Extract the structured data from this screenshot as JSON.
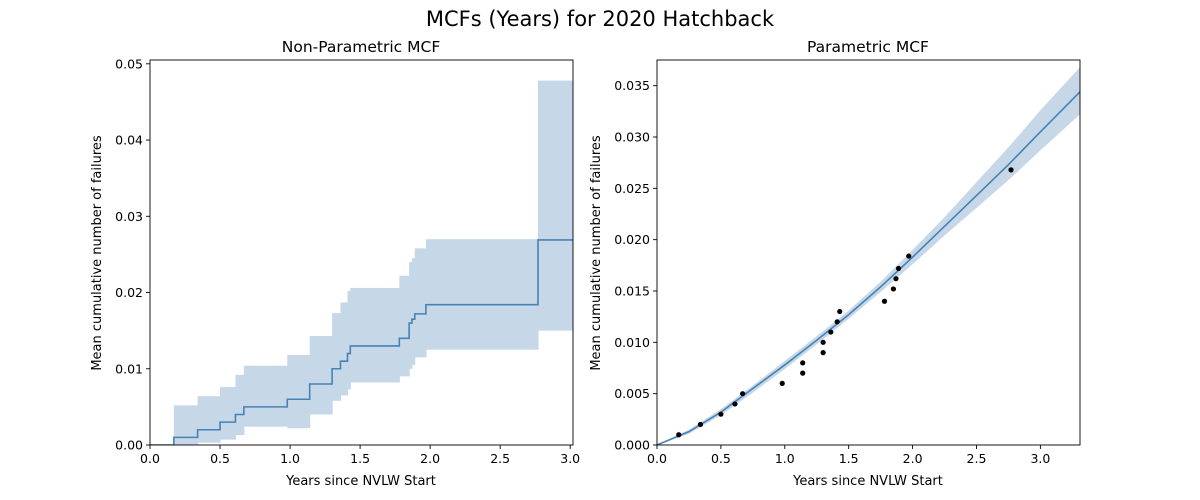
{
  "figure_title": "MCFs (Years) for 2020 Hatchback",
  "colors": {
    "line": "#4682b4",
    "band": "#c6d8e8",
    "point": "#000000"
  },
  "chart_data": [
    {
      "type": "line",
      "step": true,
      "title": "Non-Parametric MCF",
      "xlabel": "Years since NVLW Start",
      "ylabel": "Mean cumulative number of failures",
      "xlim": [
        0,
        3.02
      ],
      "ylim": [
        0,
        0.0505
      ],
      "xticks": [
        "0.0",
        "0.5",
        "1.0",
        "1.5",
        "2.0",
        "2.5",
        "3.0"
      ],
      "yticks": [
        "0.00",
        "0.01",
        "0.02",
        "0.03",
        "0.04",
        "0.05"
      ],
      "grid": false,
      "series": [
        {
          "x": [
            0.0,
            0.17,
            0.34,
            0.5,
            0.61,
            0.67,
            0.98,
            1.14,
            1.3,
            1.36,
            1.41,
            1.43,
            1.78,
            1.85,
            1.87,
            1.89,
            1.97,
            2.77
          ],
          "y": [
            0.0,
            0.001,
            0.002,
            0.003,
            0.004,
            0.005,
            0.006,
            0.008,
            0.01,
            0.011,
            0.012,
            0.013,
            0.014,
            0.016,
            0.0165,
            0.0172,
            0.0184,
            0.0269
          ],
          "lower": [
            0.0,
            0.0,
            0.0003,
            0.0007,
            0.0013,
            0.0024,
            0.0022,
            0.004,
            0.0058,
            0.0065,
            0.0073,
            0.0082,
            0.009,
            0.01,
            0.0105,
            0.0115,
            0.0125,
            0.015
          ],
          "upper": [
            0.0,
            0.0052,
            0.0064,
            0.0076,
            0.0092,
            0.0104,
            0.0118,
            0.0143,
            0.0173,
            0.0187,
            0.0202,
            0.0206,
            0.0222,
            0.024,
            0.0245,
            0.0258,
            0.027,
            0.0478
          ]
        }
      ]
    },
    {
      "type": "line",
      "title": "Parametric MCF",
      "xlabel": "Years since NVLW Start",
      "ylabel": "Mean cumulative number of failures",
      "xlim": [
        0,
        3.31
      ],
      "ylim": [
        0,
        0.0375
      ],
      "xticks": [
        "0.0",
        "0.5",
        "1.0",
        "1.5",
        "2.0",
        "2.5",
        "3.0"
      ],
      "yticks": [
        "0.000",
        "0.005",
        "0.010",
        "0.015",
        "0.020",
        "0.025",
        "0.030",
        "0.035"
      ],
      "grid": false,
      "curve": {
        "x": [
          0.0,
          0.25,
          0.5,
          0.75,
          1.0,
          1.25,
          1.5,
          1.75,
          2.0,
          2.25,
          2.5,
          2.75,
          3.0,
          3.31
        ],
        "y": [
          0.0,
          0.0013,
          0.0032,
          0.0055,
          0.0078,
          0.0102,
          0.0127,
          0.0154,
          0.0183,
          0.0213,
          0.0243,
          0.0273,
          0.0305,
          0.0344
        ],
        "lower": [
          0.0,
          0.0011,
          0.0029,
          0.0051,
          0.0074,
          0.0098,
          0.0123,
          0.0149,
          0.0176,
          0.0204,
          0.0231,
          0.0258,
          0.0287,
          0.0322
        ],
        "upper": [
          0.0,
          0.0015,
          0.0035,
          0.0058,
          0.0082,
          0.0106,
          0.0131,
          0.0159,
          0.019,
          0.0222,
          0.0256,
          0.029,
          0.0326,
          0.0368
        ]
      },
      "points": {
        "x": [
          0.17,
          0.34,
          0.5,
          0.61,
          0.67,
          0.98,
          1.14,
          1.14,
          1.3,
          1.3,
          1.36,
          1.41,
          1.43,
          1.78,
          1.85,
          1.87,
          1.89,
          1.97,
          2.77
        ],
        "y": [
          0.001,
          0.002,
          0.003,
          0.004,
          0.005,
          0.006,
          0.007,
          0.008,
          0.009,
          0.01,
          0.011,
          0.012,
          0.013,
          0.014,
          0.0152,
          0.0162,
          0.0172,
          0.0184,
          0.0268
        ]
      }
    }
  ]
}
